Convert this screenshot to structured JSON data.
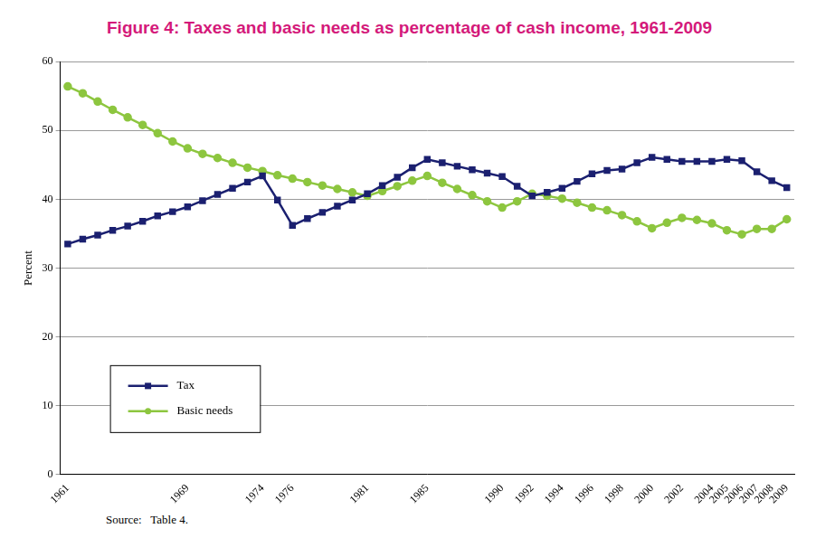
{
  "chart_data": {
    "type": "line",
    "title": "Figure 4: Taxes and basic needs as percentage of cash income, 1961-2009",
    "y_label": "Percent",
    "source": "Source:   Table 4.",
    "categories": [
      "1961",
      null,
      null,
      null,
      null,
      null,
      null,
      null,
      "1969",
      null,
      null,
      null,
      null,
      "1974",
      null,
      "1976",
      null,
      null,
      null,
      null,
      "1981",
      null,
      null,
      null,
      "1985",
      null,
      null,
      null,
      null,
      "1990",
      null,
      "1992",
      null,
      "1994",
      null,
      "1996",
      null,
      "1998",
      null,
      "2000",
      null,
      "2002",
      null,
      "2004",
      "2005",
      "2006",
      "2007",
      "2008",
      "2009"
    ],
    "series": [
      {
        "name": "Tax",
        "color": "#1b2070",
        "marker": "square",
        "line_style": "solid",
        "values": [
          33.5,
          34.2,
          34.8,
          35.5,
          36.1,
          36.8,
          37.6,
          38.2,
          38.9,
          39.8,
          40.7,
          41.6,
          42.5,
          43.4,
          39.9,
          36.2,
          37.2,
          38.1,
          39.0,
          39.9,
          40.8,
          42.0,
          43.2,
          44.6,
          45.8,
          45.3,
          44.8,
          44.3,
          43.8,
          43.3,
          41.9,
          40.5,
          41.0,
          41.6,
          42.6,
          43.7,
          44.2,
          44.4,
          45.3,
          46.1,
          45.8,
          45.5,
          45.5,
          45.5,
          45.8,
          45.6,
          44.0,
          42.7,
          41.7
        ]
      },
      {
        "name": "Basic needs",
        "color": "#8dc63f",
        "marker": "circle",
        "line_style": "solid",
        "values": [
          56.4,
          55.4,
          54.2,
          53.0,
          51.9,
          50.8,
          49.6,
          48.4,
          47.4,
          46.6,
          46.0,
          45.3,
          44.6,
          44.1,
          43.5,
          43.0,
          42.5,
          42.0,
          41.5,
          41.0,
          40.5,
          41.2,
          41.9,
          42.7,
          43.4,
          42.4,
          41.5,
          40.6,
          39.7,
          38.8,
          39.7,
          40.8,
          40.5,
          40.1,
          39.5,
          38.8,
          38.4,
          37.7,
          36.8,
          35.8,
          36.6,
          37.3,
          37.0,
          36.5,
          35.5,
          34.9,
          35.7,
          35.7,
          37.1
        ]
      }
    ],
    "ylim": [
      0,
      60
    ],
    "yticks": [
      0,
      10,
      20,
      30,
      40,
      50,
      60
    ],
    "grid": true,
    "legend": "bottom-left"
  }
}
